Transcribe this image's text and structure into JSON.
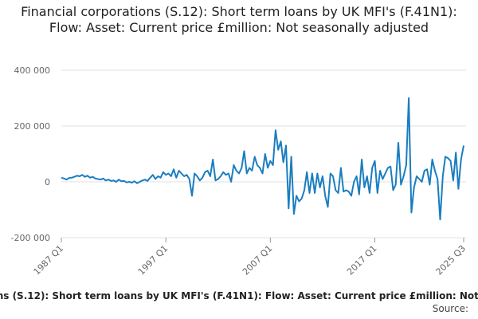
{
  "chart_data": {
    "type": "line",
    "title": "Financial corporations (S.12): Short term loans by UK MFI's (F.41N1): Flow: Asset: Current price £million: Not seasonally adjusted",
    "source": "Source:",
    "categories": [
      "1987 Q1",
      null,
      null,
      null,
      null,
      null,
      null,
      null,
      null,
      null,
      null,
      null,
      null,
      null,
      null,
      null,
      null,
      null,
      null,
      null,
      null,
      null,
      null,
      null,
      null,
      null,
      null,
      null,
      null,
      null,
      null,
      null,
      null,
      null,
      null,
      null,
      null,
      null,
      null,
      null,
      "1997 Q1",
      null,
      null,
      null,
      null,
      null,
      null,
      null,
      null,
      null,
      null,
      null,
      null,
      null,
      null,
      null,
      null,
      null,
      null,
      null,
      null,
      null,
      null,
      null,
      null,
      null,
      null,
      null,
      null,
      null,
      null,
      null,
      null,
      null,
      null,
      null,
      null,
      null,
      null,
      null,
      "2007 Q1",
      null,
      null,
      null,
      null,
      null,
      null,
      null,
      null,
      null,
      null,
      null,
      null,
      null,
      null,
      null,
      null,
      null,
      null,
      null,
      null,
      null,
      null,
      null,
      null,
      null,
      null,
      null,
      null,
      null,
      null,
      null,
      null,
      null,
      null,
      null,
      null,
      null,
      null,
      null,
      "2017 Q1",
      null,
      null,
      null,
      null,
      null,
      null,
      null,
      null,
      null,
      null,
      null,
      null,
      null,
      null,
      null,
      null,
      null,
      null,
      null,
      null,
      null,
      null,
      null,
      null,
      null,
      null,
      null,
      null,
      null,
      null,
      null,
      null,
      null,
      "2025 Q3"
    ],
    "values": [
      15000,
      12000,
      8000,
      14000,
      15000,
      18000,
      22000,
      20000,
      25000,
      18000,
      22000,
      15000,
      18000,
      12000,
      10000,
      8000,
      12000,
      5000,
      8000,
      3000,
      5000,
      0,
      8000,
      2000,
      3000,
      -2000,
      0,
      -3000,
      2000,
      -5000,
      0,
      5000,
      8000,
      3000,
      15000,
      25000,
      10000,
      20000,
      15000,
      35000,
      25000,
      30000,
      20000,
      45000,
      15000,
      40000,
      30000,
      20000,
      25000,
      10000,
      -50000,
      30000,
      20000,
      5000,
      15000,
      35000,
      40000,
      20000,
      80000,
      5000,
      10000,
      20000,
      35000,
      25000,
      30000,
      0,
      60000,
      40000,
      30000,
      50000,
      110000,
      30000,
      50000,
      40000,
      90000,
      60000,
      50000,
      30000,
      100000,
      50000,
      75000,
      60000,
      185000,
      115000,
      145000,
      70000,
      130000,
      -95000,
      90000,
      -115000,
      -50000,
      -70000,
      -60000,
      -30000,
      35000,
      -40000,
      30000,
      -40000,
      30000,
      -20000,
      20000,
      -50000,
      -90000,
      30000,
      20000,
      -30000,
      -40000,
      50000,
      -35000,
      -30000,
      -35000,
      -50000,
      0,
      20000,
      -45000,
      80000,
      -20000,
      20000,
      -40000,
      50000,
      75000,
      -40000,
      40000,
      10000,
      30000,
      50000,
      55000,
      -30000,
      -10000,
      140000,
      -10000,
      20000,
      60000,
      300000,
      -110000,
      -20000,
      20000,
      10000,
      0,
      40000,
      45000,
      -10000,
      80000,
      40000,
      10000,
      -135000,
      20000,
      90000,
      85000,
      75000,
      5000,
      105000,
      -25000,
      80000,
      130000
    ],
    "color": "#1a7dc0",
    "ylim": [
      -200000,
      400000
    ],
    "yticks": [
      {
        "value": -200000,
        "label": "-200 000"
      },
      0,
      {
        "value": 200000,
        "label": "200 000"
      },
      {
        "value": 400000,
        "label": "400 000"
      }
    ],
    "grid": true
  }
}
